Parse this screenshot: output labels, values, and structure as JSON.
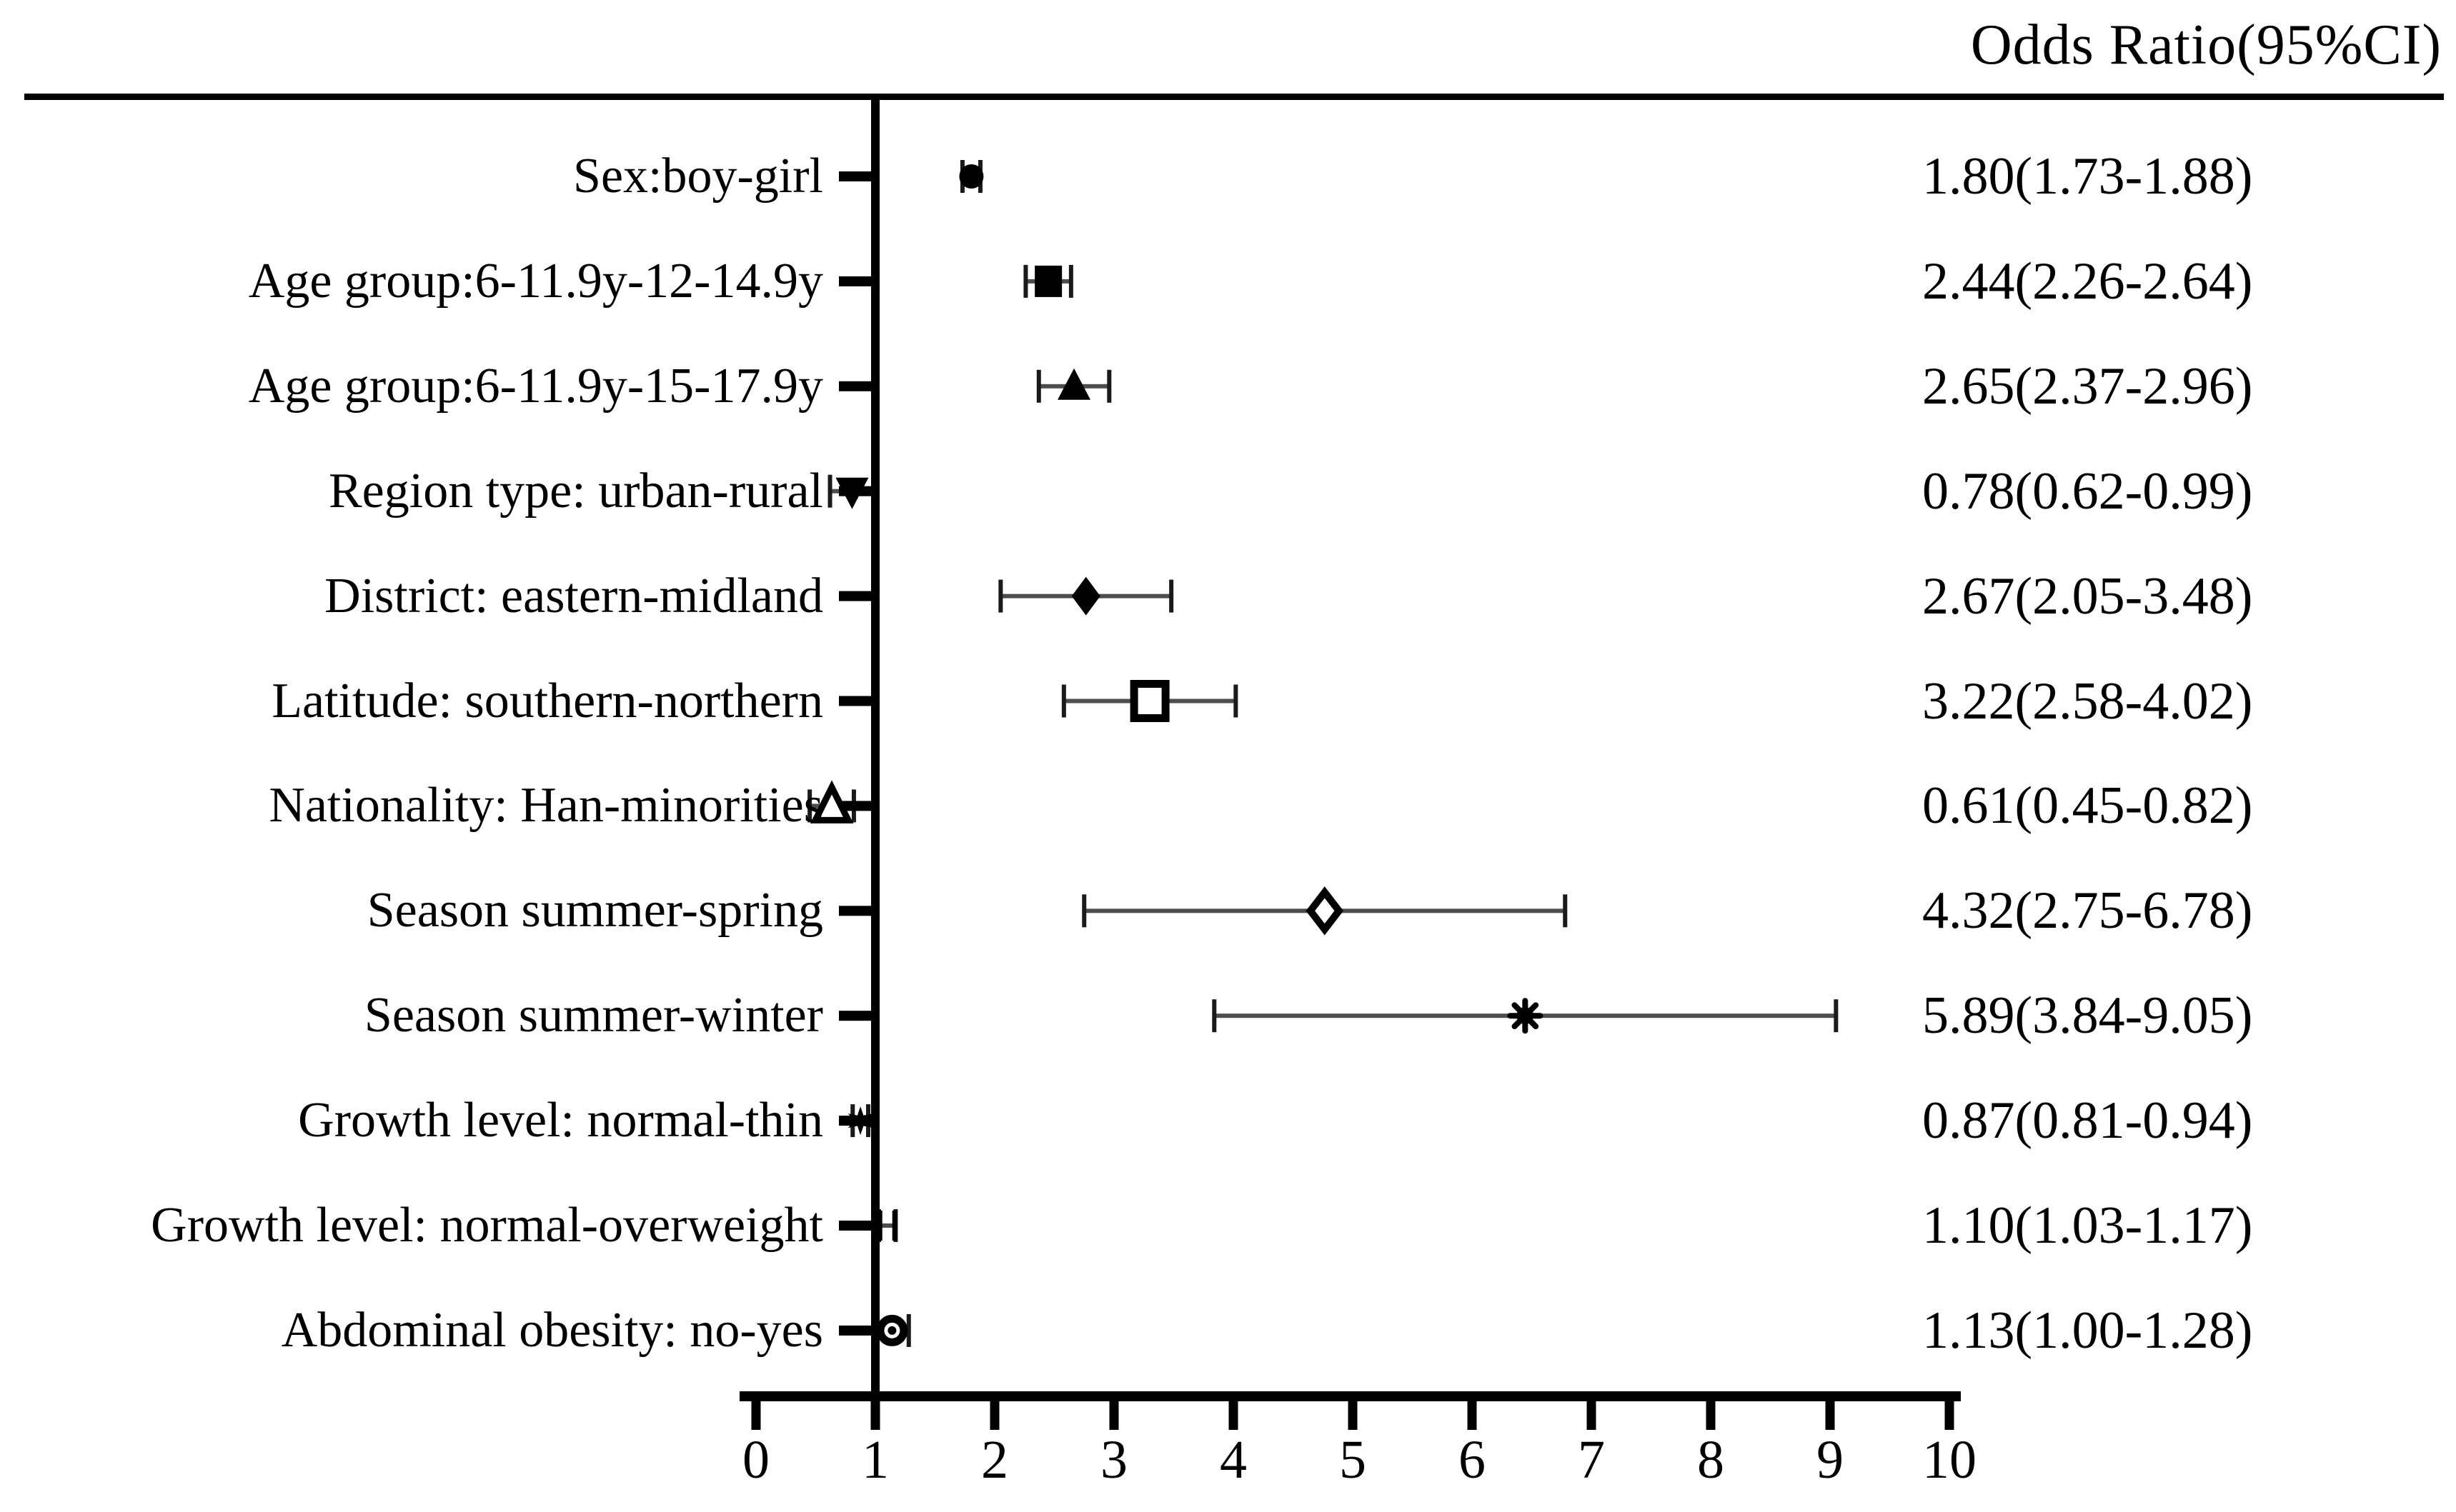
{
  "title": "Odds Ratio(95%CI)",
  "colors": {
    "background": "#ffffff",
    "text": "#000000",
    "axis": "#000000",
    "ci_line": "#4d4d4d",
    "ci_cap": "#1a1a1a",
    "marker": "#000000"
  },
  "chart_data": {
    "type": "scatter",
    "variant": "forest-plot",
    "title": "Odds Ratio(95%CI)",
    "xlabel": "",
    "ylabel": "",
    "xlim": [
      0,
      10
    ],
    "x_tick_labels": [
      "0",
      "1",
      "2",
      "3",
      "4",
      "5",
      "6",
      "7",
      "8",
      "9",
      "10"
    ],
    "x_tick_values": [
      0,
      1,
      2,
      3,
      4,
      5,
      6,
      7,
      8,
      9,
      10
    ],
    "reference_line_x": 1,
    "grid": false,
    "legend_position": "none",
    "rows": [
      {
        "label": "Sex:boy-girl",
        "or": 1.8,
        "ci_low": 1.73,
        "ci_high": 1.88,
        "display": "1.80(1.73-1.88)",
        "marker": "filled-circle"
      },
      {
        "label": "Age group:6-11.9y-12-14.9y",
        "or": 2.44,
        "ci_low": 2.26,
        "ci_high": 2.64,
        "display": "2.44(2.26-2.64)",
        "marker": "filled-square"
      },
      {
        "label": "Age group:6-11.9y-15-17.9y",
        "or": 2.65,
        "ci_low": 2.37,
        "ci_high": 2.96,
        "display": "2.65(2.37-2.96)",
        "marker": "filled-triangle-up"
      },
      {
        "label": "Region type: urban-rural",
        "or": 0.78,
        "ci_low": 0.62,
        "ci_high": 0.99,
        "display": "0.78(0.62-0.99)",
        "marker": "filled-triangle-down"
      },
      {
        "label": "District: eastern-midland",
        "or": 2.67,
        "ci_low": 2.05,
        "ci_high": 3.48,
        "display": "2.67(2.05-3.48)",
        "marker": "filled-diamond"
      },
      {
        "label": "Latitude: southern-northern",
        "or": 3.22,
        "ci_low": 2.58,
        "ci_high": 4.02,
        "display": "3.22(2.58-4.02)",
        "marker": "open-square"
      },
      {
        "label": "Nationality: Han-minorities",
        "or": 0.61,
        "ci_low": 0.45,
        "ci_high": 0.82,
        "display": "0.61(0.45-0.82)",
        "marker": "open-triangle-up"
      },
      {
        "label": "Season summer-spring",
        "or": 4.32,
        "ci_low": 2.75,
        "ci_high": 6.78,
        "display": "4.32(2.75-6.78)",
        "marker": "open-diamond"
      },
      {
        "label": "Season summer-winter",
        "or": 5.89,
        "ci_low": 3.84,
        "ci_high": 9.05,
        "display": "5.89(3.84-9.05)",
        "marker": "filled-asterisk"
      },
      {
        "label": "Growth level: normal-thin",
        "or": 0.87,
        "ci_low": 0.81,
        "ci_high": 0.94,
        "display": "0.87(0.81-0.94)",
        "marker": "filled-star"
      },
      {
        "label": "Growth  level: normal-overweight",
        "or": 1.1,
        "ci_low": 1.03,
        "ci_high": 1.17,
        "display": "1.10(1.03-1.17)",
        "marker": "double-vertical-bar"
      },
      {
        "label": "Abdominal obesity: no-yes",
        "or": 1.13,
        "ci_low": 1.0,
        "ci_high": 1.28,
        "display": "1.13(1.00-1.28)",
        "marker": "circled-dot"
      }
    ]
  }
}
